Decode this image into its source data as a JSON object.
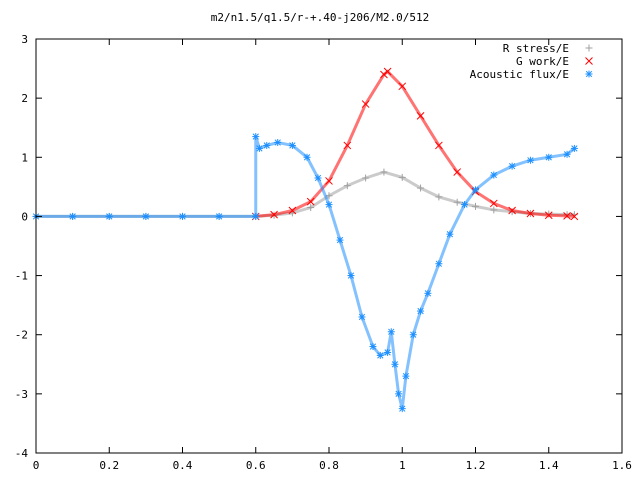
{
  "chart_data": {
    "type": "scatter",
    "title": "m2/n1.5/q1.5/r-+.40-j206/M2.0/512",
    "xlabel": "",
    "ylabel": "",
    "xlim": [
      0,
      1.6
    ],
    "ylim": [
      -4,
      3
    ],
    "x_ticks": [
      "0",
      "0.2",
      "0.4",
      "0.6",
      "0.8",
      "1",
      "1.2",
      "1.4",
      "1.6"
    ],
    "y_ticks": [
      "3",
      "2",
      "1",
      "0",
      "-1",
      "-2",
      "-3",
      "-4"
    ],
    "grid": false,
    "legend_position": "top-right",
    "series": [
      {
        "name": "R stress/E",
        "marker": "plus",
        "color": "#a0a0a0",
        "x": [
          0.0,
          0.1,
          0.2,
          0.3,
          0.4,
          0.5,
          0.6,
          0.65,
          0.7,
          0.75,
          0.8,
          0.85,
          0.9,
          0.95,
          1.0,
          1.05,
          1.1,
          1.15,
          1.2,
          1.25,
          1.3,
          1.35,
          1.4,
          1.45,
          1.47
        ],
        "y": [
          0,
          0,
          0,
          0,
          0,
          0,
          0,
          0.02,
          0.06,
          0.15,
          0.35,
          0.52,
          0.65,
          0.75,
          0.66,
          0.48,
          0.33,
          0.24,
          0.17,
          0.11,
          0.08,
          0.05,
          0.04,
          0.03,
          0.03
        ]
      },
      {
        "name": "G work/E",
        "marker": "cross",
        "color": "#ff0000",
        "x": [
          0.6,
          0.65,
          0.7,
          0.75,
          0.8,
          0.85,
          0.9,
          0.95,
          0.96,
          1.0,
          1.05,
          1.1,
          1.15,
          1.2,
          1.25,
          1.3,
          1.35,
          1.4,
          1.45,
          1.47
        ],
        "y": [
          0,
          0.03,
          0.1,
          0.25,
          0.6,
          1.2,
          1.9,
          2.4,
          2.45,
          2.2,
          1.7,
          1.2,
          0.75,
          0.42,
          0.22,
          0.1,
          0.05,
          0.02,
          0.01,
          0
        ]
      },
      {
        "name": "Acoustic flux/E",
        "marker": "star",
        "color": "#1e90ff",
        "x": [
          0.0,
          0.1,
          0.2,
          0.3,
          0.4,
          0.5,
          0.6,
          0.6,
          0.61,
          0.63,
          0.66,
          0.7,
          0.74,
          0.77,
          0.8,
          0.83,
          0.86,
          0.89,
          0.92,
          0.94,
          0.96,
          0.97,
          0.98,
          0.99,
          1.0,
          1.01,
          1.03,
          1.05,
          1.07,
          1.1,
          1.13,
          1.17,
          1.2,
          1.25,
          1.3,
          1.35,
          1.4,
          1.45,
          1.47
        ],
        "y": [
          0,
          0,
          0,
          0,
          0,
          0,
          0,
          1.35,
          1.15,
          1.2,
          1.25,
          1.2,
          1.0,
          0.65,
          0.2,
          -0.4,
          -1.0,
          -1.7,
          -2.2,
          -2.35,
          -2.3,
          -1.95,
          -2.5,
          -3.0,
          -3.25,
          -2.7,
          -2.0,
          -1.6,
          -1.3,
          -0.8,
          -0.3,
          0.2,
          0.45,
          0.7,
          0.85,
          0.95,
          1.0,
          1.05,
          1.15
        ]
      }
    ]
  }
}
